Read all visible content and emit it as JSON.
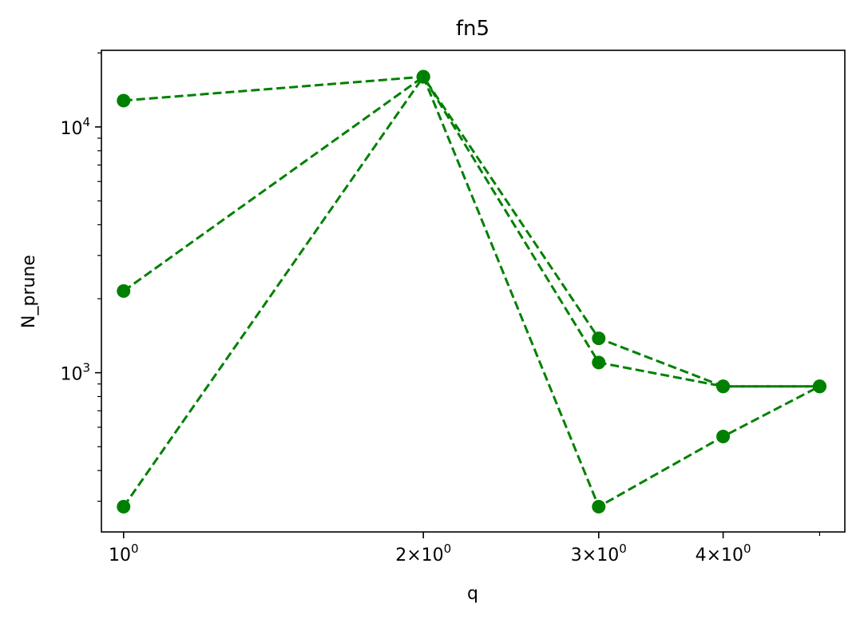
{
  "chart_data": {
    "type": "line",
    "title": "fn5",
    "xlabel": "q",
    "ylabel": "N_prune",
    "xscale": "log",
    "yscale": "log",
    "xlim": [
      0.95,
      5.3
    ],
    "ylim": [
      225,
      20500
    ],
    "x_ticks": [
      {
        "value": 1,
        "base": "10",
        "exp": "0"
      },
      {
        "value": 2,
        "mant": "2",
        "base": "10",
        "exp": "0"
      },
      {
        "value": 3,
        "mant": "3",
        "base": "10",
        "exp": "0"
      },
      {
        "value": 4,
        "mant": "4",
        "base": "10",
        "exp": "0"
      }
    ],
    "x_minor_ticks": [
      5
    ],
    "y_ticks": [
      {
        "value": 1000,
        "base": "10",
        "exp": "3"
      },
      {
        "value": 10000,
        "base": "10",
        "exp": "4"
      }
    ],
    "y_minor_ticks": [
      300,
      400,
      500,
      600,
      700,
      800,
      900,
      2000,
      3000,
      4000,
      5000,
      6000,
      7000,
      8000,
      9000,
      20000
    ],
    "grid": false,
    "color": "#008000",
    "line_style": "dashed",
    "marker": "circle",
    "series": [
      {
        "x": [
          1,
          2,
          3,
          4,
          5
        ],
        "y": [
          12800,
          16000,
          1380,
          880,
          880
        ]
      },
      {
        "x": [
          1,
          2,
          3,
          4,
          5
        ],
        "y": [
          2150,
          16000,
          1100,
          880,
          880
        ]
      },
      {
        "x": [
          1,
          2,
          3,
          4,
          5
        ],
        "y": [
          285,
          16000,
          285,
          550,
          880
        ]
      }
    ]
  }
}
